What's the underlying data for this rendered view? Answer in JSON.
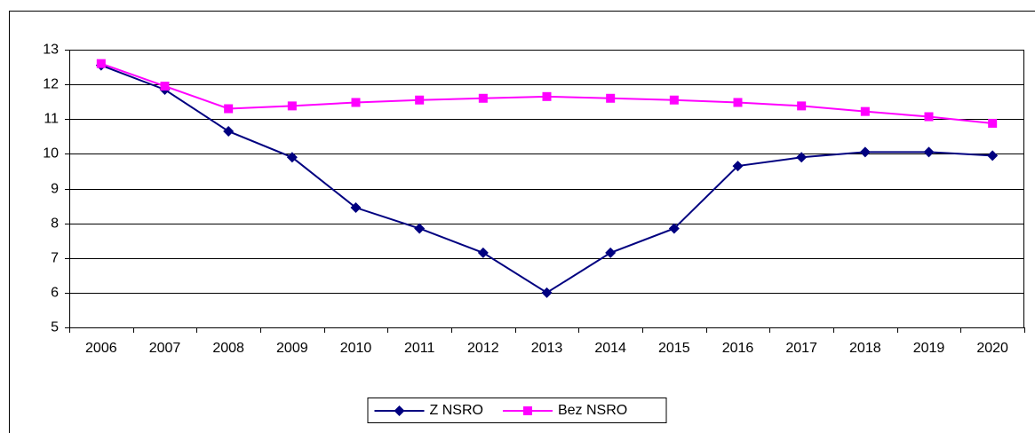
{
  "chart_data": {
    "type": "line",
    "categories": [
      "2006",
      "2007",
      "2008",
      "2009",
      "2010",
      "2011",
      "2012",
      "2013",
      "2014",
      "2015",
      "2016",
      "2017",
      "2018",
      "2019",
      "2020"
    ],
    "series": [
      {
        "name": "Z NSRO",
        "color": "#000080",
        "marker": "diamond",
        "values": [
          12.55,
          11.85,
          10.65,
          9.9,
          8.45,
          7.85,
          7.15,
          6.0,
          7.15,
          7.85,
          9.65,
          9.9,
          10.05,
          10.05,
          9.95
        ]
      },
      {
        "name": "Bez NSRO",
        "color": "#ff00ff",
        "marker": "square",
        "values": [
          12.6,
          11.95,
          11.3,
          11.38,
          11.48,
          11.55,
          11.6,
          11.65,
          11.6,
          11.55,
          11.48,
          11.38,
          11.22,
          11.07,
          10.88
        ]
      }
    ],
    "ylim": [
      5,
      13
    ],
    "yticks": [
      5,
      6,
      7,
      8,
      9,
      10,
      11,
      12,
      13
    ],
    "grid": true,
    "legend": "bottom"
  }
}
